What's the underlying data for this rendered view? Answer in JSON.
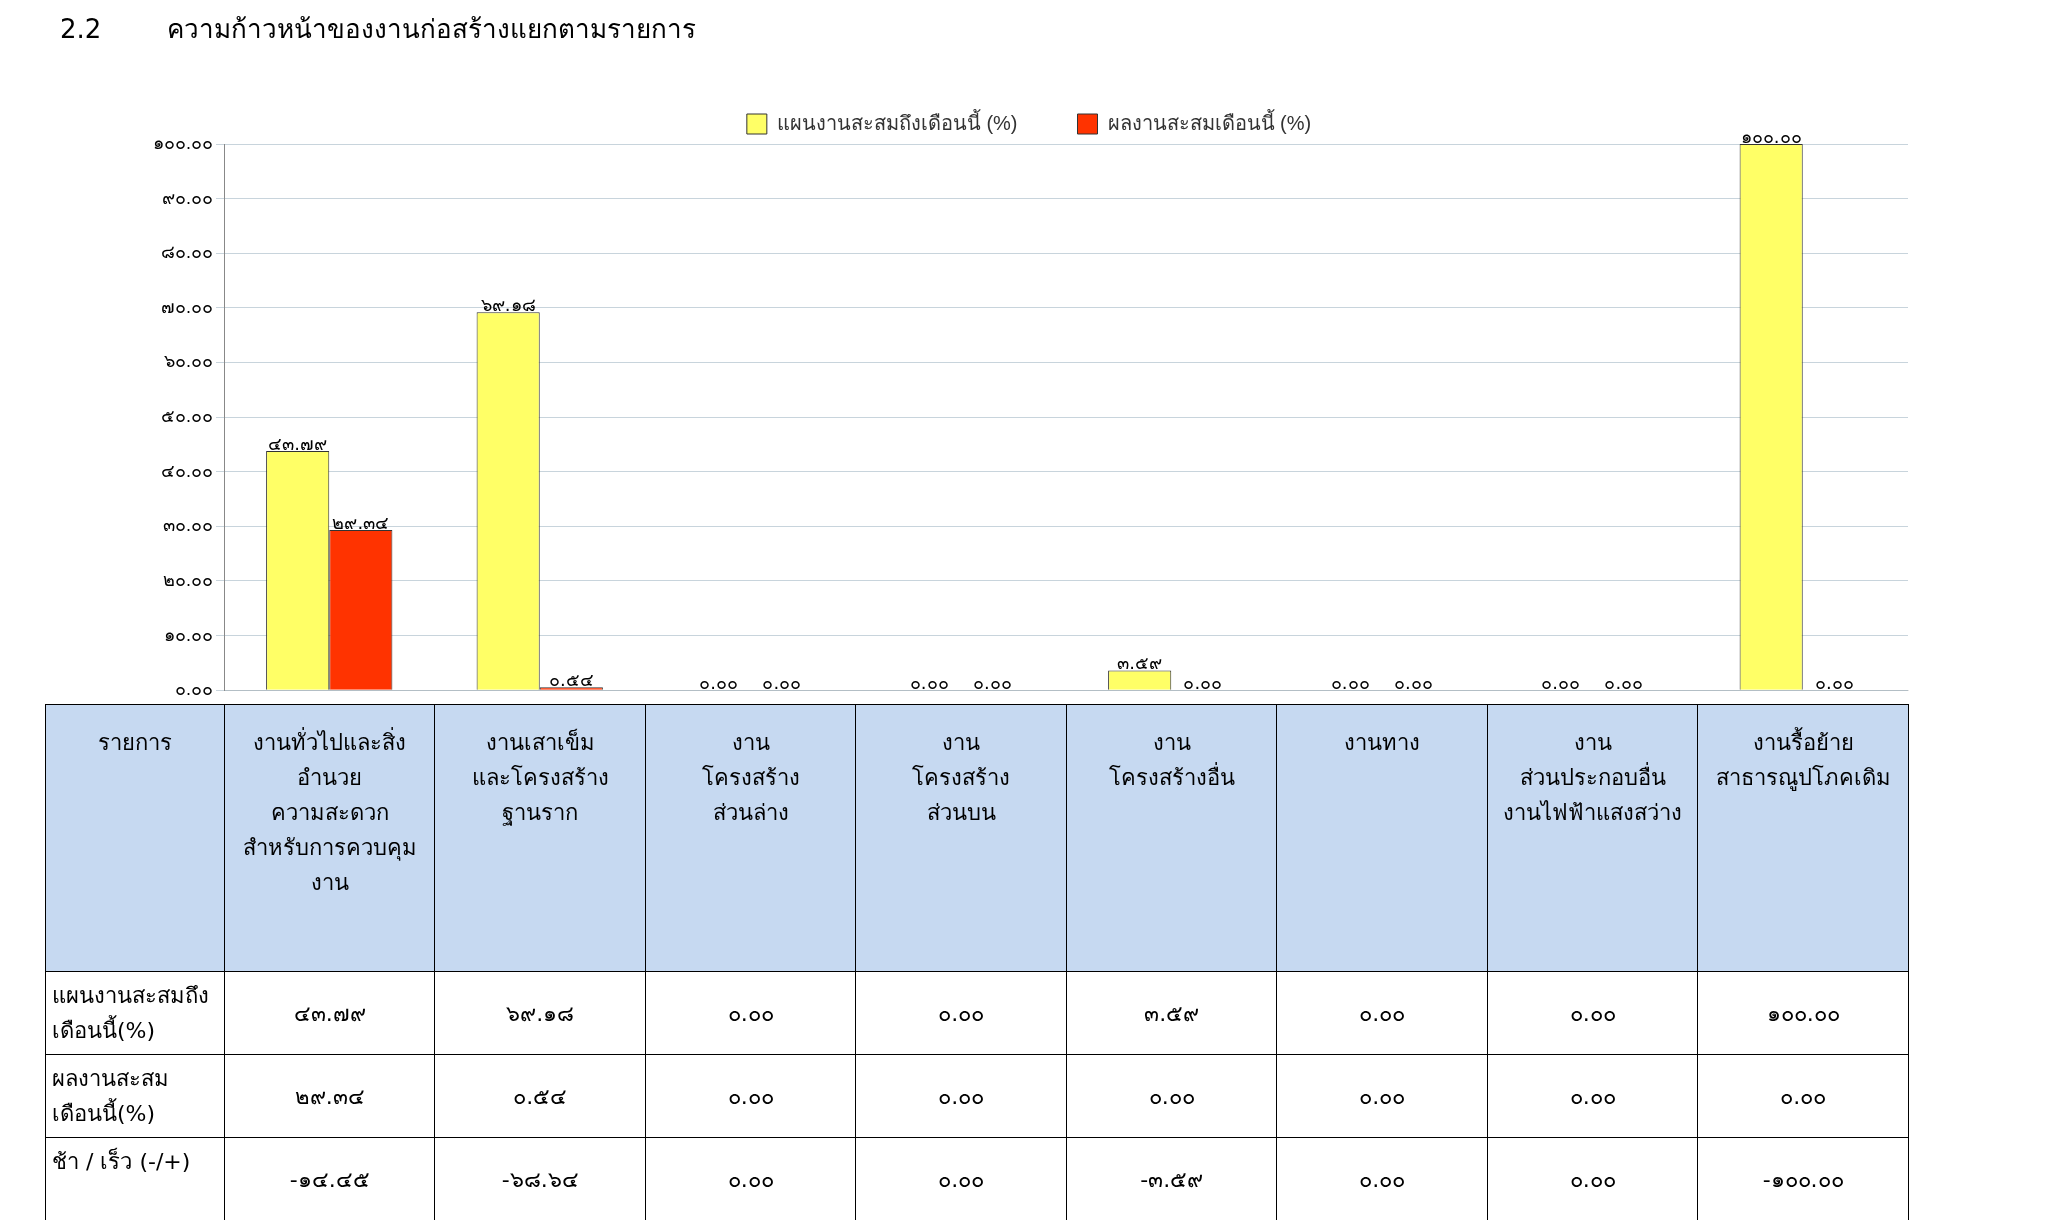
{
  "chart_data": {
    "type": "bar",
    "title": "2.2        ความก้าวหน้าของงานก่อสร้างแยกตามรายการ",
    "categories": [
      "งานทั่วไปและสิ่งอำนวย\nความสะดวก\nสำหรับการควบคุมงาน",
      "งานเสาเข็ม\nและโครงสร้าง\nฐานราก",
      "งาน\nโครงสร้าง\nส่วนล่าง",
      "งาน\nโครงสร้าง\nส่วนบน",
      "งาน\nโครงสร้างอื่น",
      "งานทาง",
      "งาน\nส่วนประกอบอื่น\nงานไฟฟ้าแสงสว่าง",
      "งานรื้อย้าย\nสาธารณูปโภคเดิม"
    ],
    "series": [
      {
        "name": "แผนงานสะสมถึงเดือนนี้ (%)",
        "color": "#ffff66",
        "values": [
          43.79,
          69.18,
          0,
          0,
          3.59,
          0,
          0,
          100
        ],
        "value_labels": [
          "๔๓.๗๙",
          "๖๙.๑๘",
          "๐.๐๐",
          "๐.๐๐",
          "๓.๕๙",
          "๐.๐๐",
          "๐.๐๐",
          "๑๐๐.๐๐"
        ]
      },
      {
        "name": "ผลงานสะสมเดือนนี้ (%)",
        "color": "#ff3300",
        "values": [
          29.34,
          0.54,
          0,
          0,
          0,
          0,
          0,
          0
        ],
        "value_labels": [
          "๒๙.๓๔",
          "๐.๕๔",
          "๐.๐๐",
          "๐.๐๐",
          "๐.๐๐",
          "๐.๐๐",
          "๐.๐๐",
          "๐.๐๐"
        ]
      }
    ],
    "ylim": [
      0,
      100
    ],
    "yticks": [
      {
        "value": 0,
        "label": "๐.๐๐"
      },
      {
        "value": 10,
        "label": "๑๐.๐๐"
      },
      {
        "value": 20,
        "label": "๒๐.๐๐"
      },
      {
        "value": 30,
        "label": "๓๐.๐๐"
      },
      {
        "value": 40,
        "label": "๔๐.๐๐"
      },
      {
        "value": 50,
        "label": "๕๐.๐๐"
      },
      {
        "value": 60,
        "label": "๖๐.๐๐"
      },
      {
        "value": 70,
        "label": "๗๐.๐๐"
      },
      {
        "value": 80,
        "label": "๘๐.๐๐"
      },
      {
        "value": 90,
        "label": "๙๐.๐๐"
      },
      {
        "value": 100,
        "label": "๑๐๐.๐๐"
      }
    ],
    "grid": "y",
    "legend": "top",
    "tick_labels": "y",
    "annotations": [
      "รายการ",
      "แผนงานสะสมถึงเดือนนี้(%)",
      "ผลงานสะสมเดือนนี้(%)",
      "ช้า / เร็ว  (-/+)",
      "-๑๔.๔๕",
      "-๖๘.๖๔",
      "๐.๐๐",
      "๐.๐๐",
      "-๓.๕๙",
      "๐.๐๐",
      "๐.๐๐",
      "-๑๐๐.๐๐"
    ]
  }
}
